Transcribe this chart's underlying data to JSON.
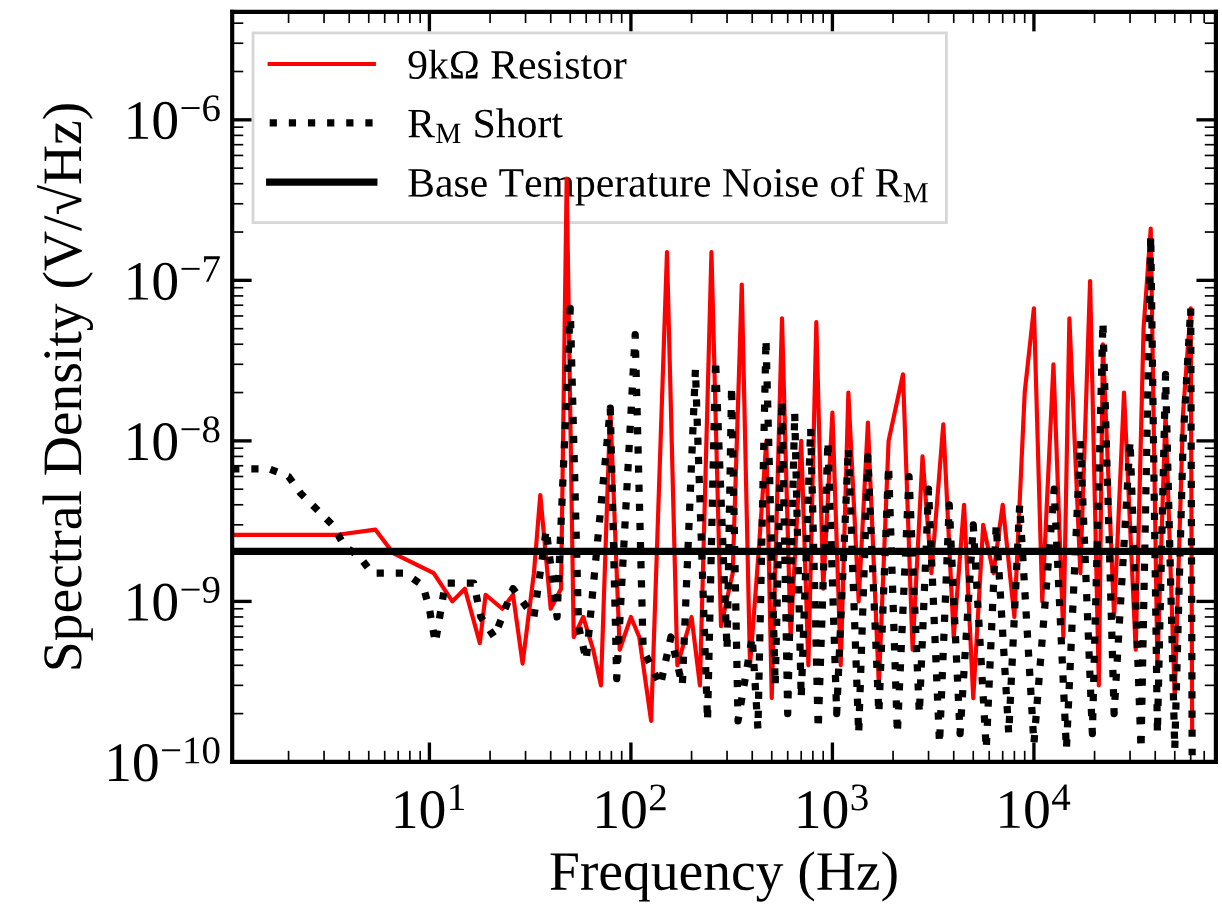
{
  "chart_data": {
    "type": "line",
    "xlabel": "Frequency (Hz)",
    "ylabel": "Spectral Density (V/√Hz)",
    "log": "xy",
    "xlim": [
      1.05,
      80000
    ],
    "ylim": [
      1e-10,
      4.7e-06
    ],
    "xticks": [
      {
        "value": 10,
        "label": "10$^{1}$"
      },
      {
        "value": 100,
        "label": "10$^{2}$"
      },
      {
        "value": 1000,
        "label": "10$^{3}$"
      },
      {
        "value": 10000,
        "label": "10$^{4}$"
      }
    ],
    "yticks": [
      {
        "value": 1e-10,
        "label": "10$^{−10}$"
      },
      {
        "value": 1e-09,
        "label": "10$^{−9}$"
      },
      {
        "value": 1e-08,
        "label": "10$^{−8}$"
      },
      {
        "value": 1e-07,
        "label": "10$^{−7}$"
      },
      {
        "value": 1e-06,
        "label": "10$^{−6}$"
      }
    ],
    "grid": false,
    "legend": "top left",
    "marker": "none",
    "series": [
      {
        "name": "9kΩ Resistor",
        "color": "#ff0000",
        "line_style": "solid",
        "x": [
          1.05,
          3.5,
          5.4,
          6.6,
          10.5,
          13,
          15,
          17.8,
          19,
          23,
          26,
          29,
          33,
          35.5,
          40,
          45,
          48,
          52,
          58,
          65,
          71,
          79,
          88,
          100,
          110,
          126,
          151,
          170,
          200,
          220,
          251,
          280,
          320,
          355,
          390,
          430,
          470,
          500,
          562,
          620,
          700,
          760,
          832,
          900,
          1000,
          1100,
          1200,
          1350,
          1500,
          1700,
          1900,
          2240,
          2500,
          2800,
          3100,
          3550,
          4000,
          4500,
          5000,
          5600,
          6300,
          7000,
          8000,
          9000,
          10000,
          11000,
          12500,
          14000,
          15000,
          17000,
          19000,
          21000,
          22000,
          25000,
          28000,
          32000,
          35000,
          38000,
          41000,
          45000,
          50000,
          55000,
          60000,
          61000
        ],
        "values": [
          2.6e-09,
          2.6e-09,
          2.8e-09,
          2e-09,
          1.5e-09,
          1e-09,
          1.2e-09,
          5.5e-10,
          1.1e-09,
          9e-10,
          1.1e-09,
          4.1e-10,
          1.5e-09,
          4.6e-09,
          9e-10,
          1.2e-09,
          4.3e-07,
          6e-10,
          8e-10,
          5e-10,
          3e-10,
          1.6e-08,
          5e-10,
          8e-10,
          6e-10,
          1.8e-10,
          1.5e-07,
          4e-10,
          8e-10,
          3e-10,
          1.5e-07,
          7e-10,
          1.5e-09,
          9.4e-08,
          4e-10,
          2e-09,
          1e-08,
          2.5e-10,
          5.8e-08,
          6e-10,
          1e-08,
          4e-10,
          5.5e-08,
          1.2e-09,
          1.5e-08,
          4e-10,
          2e-08,
          1e-09,
          1.3e-08,
          3e-10,
          1e-08,
          2.6e-08,
          5e-10,
          8e-09,
          1.5e-09,
          1.27e-08,
          6e-10,
          4e-09,
          2.5e-10,
          3e-09,
          1.5e-09,
          4e-09,
          8e-10,
          2e-08,
          6.7e-08,
          1e-09,
          3e-08,
          6e-10,
          5.8e-08,
          1.5e-09,
          9.9e-08,
          3e-10,
          4e-08,
          8e-10,
          2e-08,
          5e-10,
          5e-08,
          2.1e-07,
          4e-10,
          1.5e-08,
          2.5e-10,
          1.5e-08,
          6.7e-08,
          1.5e-10
        ]
      },
      {
        "name": "R$_{M}$ Short",
        "color": "#000000",
        "line_style": "dotted",
        "x": [
          1.05,
          1.6,
          2,
          2.3,
          3.3,
          3.8,
          4.5,
          5.2,
          7.6,
          9.3,
          10,
          10.7,
          12,
          16.6,
          18,
          21,
          26,
          33,
          38,
          43,
          50,
          55,
          60,
          79,
          85,
          105,
          115,
          140,
          158,
          180,
          209,
          240,
          263,
          300,
          316,
          340,
          400,
          427,
          468,
          520,
          562,
          600,
          650,
          700,
          780,
          850,
          950,
          1050,
          1200,
          1350,
          1500,
          1700,
          1900,
          2100,
          2400,
          2700,
          3000,
          3400,
          3800,
          4300,
          5000,
          5800,
          6500,
          7500,
          8500,
          10000,
          12600,
          14500,
          17000,
          19500,
          22000,
          25000,
          30000,
          34000,
          38000,
          41000,
          45000,
          50000,
          55000,
          60000,
          61000
        ],
        "values": [
          6.7e-09,
          6.7e-09,
          6e-09,
          4.7e-09,
          3e-09,
          2.2e-09,
          1.9e-09,
          1.5e-09,
          1.5e-09,
          1.25e-09,
          9e-10,
          5.5e-10,
          1.3e-09,
          1.3e-09,
          8e-10,
          6e-10,
          1.2e-09,
          8e-10,
          2.8e-09,
          8e-10,
          6.7e-08,
          7e-10,
          4.3e-10,
          1.6e-08,
          3.3e-10,
          4.6e-08,
          5e-10,
          3e-10,
          6e-10,
          3e-10,
          2.8e-08,
          1.8e-10,
          3.2e-08,
          5e-10,
          2.2e-08,
          1.8e-10,
          6e-10,
          1.6e-10,
          4.3e-08,
          3e-10,
          1.8e-08,
          2e-10,
          1.5e-08,
          2.5e-10,
          1.2e-08,
          1.6e-10,
          1e-08,
          2e-10,
          9e-09,
          1.5e-10,
          8e-09,
          2e-10,
          7e-09,
          1.5e-10,
          6e-09,
          2e-10,
          5e-09,
          1.3e-10,
          4e-09,
          1.5e-10,
          3e-09,
          1.2e-10,
          3e-09,
          1.5e-10,
          4e-09,
          1.3e-10,
          5e-09,
          1.2e-10,
          1e-08,
          1.5e-10,
          5.5e-08,
          2e-10,
          1e-08,
          1.2e-10,
          1.9e-07,
          1.5e-10,
          2.6e-08,
          1.2e-10,
          1e-08,
          6.7e-08,
          1.1e-10
        ]
      }
    ],
    "ref_lines": [
      {
        "axis": "y",
        "value": 2.05e-09,
        "label": "Base Temperature Noise of R$_{M}$",
        "color": "#000000",
        "line_style": "solid"
      }
    ]
  }
}
